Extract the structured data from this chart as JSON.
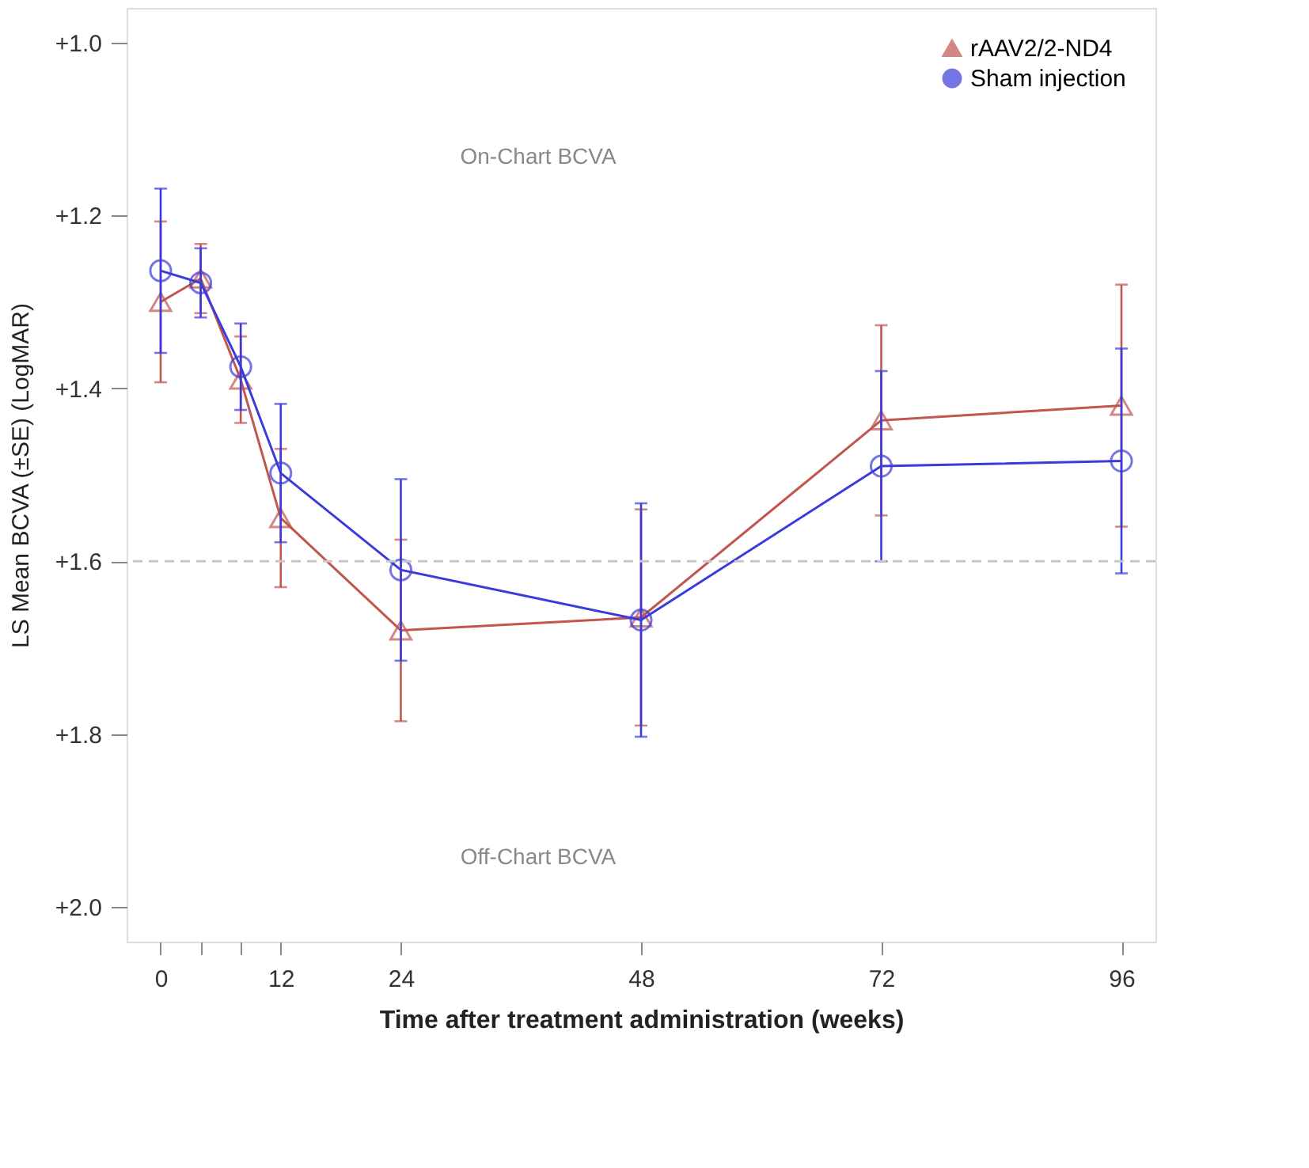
{
  "chart_data": {
    "type": "line",
    "xlabel": "Time after treatment administration (weeks)",
    "ylabel": "LS Mean  BCVA  (±SE) (LogMAR)",
    "x": [
      0,
      4,
      8,
      12,
      24,
      48,
      72,
      96
    ],
    "series": [
      {
        "name": "rAAV2/2-ND4",
        "color": "#c0564e",
        "marker": "triangle",
        "values": [
          1.3,
          1.273,
          1.39,
          1.55,
          1.68,
          1.665,
          1.437,
          1.42
        ],
        "errors": [
          0.093,
          0.04,
          0.05,
          0.08,
          0.105,
          0.125,
          0.11,
          0.14
        ]
      },
      {
        "name": "Sham injection",
        "color": "#3b3bdc",
        "marker": "circle",
        "values": [
          1.264,
          1.278,
          1.375,
          1.498,
          1.61,
          1.668,
          1.49,
          1.484
        ],
        "errors": [
          0.095,
          0.04,
          0.05,
          0.08,
          0.105,
          0.135,
          0.11,
          0.13
        ]
      }
    ],
    "xlim": [
      -3.4,
      99.4
    ],
    "xticks": [
      0,
      {
        "value": 4,
        "label": null
      },
      {
        "value": 8,
        "label": null
      },
      12,
      24,
      48,
      72,
      96
    ],
    "ylim": [
      2.04,
      0.96
    ],
    "yticks": [
      {
        "value": 1.0,
        "label": "+1.0"
      },
      {
        "value": 1.2,
        "label": "+1.2"
      },
      {
        "value": 1.4,
        "label": "+1.4"
      },
      {
        "value": 1.6,
        "label": "+1.6"
      },
      {
        "value": 1.8,
        "label": "+1.8"
      },
      {
        "value": 2.0,
        "label": "+2.0"
      }
    ],
    "ref_lines": [
      {
        "axis": "y",
        "value": 1.6,
        "color": "#c8c8c8",
        "line_style": "dashed"
      }
    ],
    "annotations": [
      "On-Chart BCVA",
      "Off-Chart BCVA"
    ],
    "legend": "top right",
    "grid": false,
    "line_style": "solid"
  }
}
